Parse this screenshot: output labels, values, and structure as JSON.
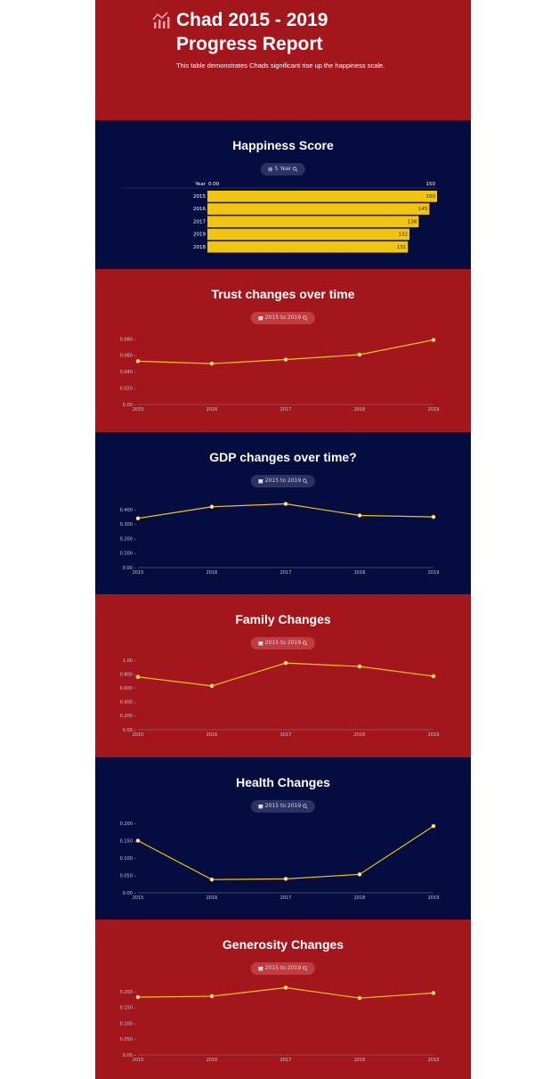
{
  "header": {
    "title_line1": "Chad 2015 - 2019",
    "title_line2": "Progress Report",
    "subtitle": "This table demonstrates Chads significant rise up the happiness scale."
  },
  "colors": {
    "red": "#a3161c",
    "navy": "#050c40",
    "accent": "#f1c40f"
  },
  "sections": [
    {
      "title": "Happiness Score",
      "pill": "5 Year",
      "pill_icon": "hash-icon",
      "theme": "navy"
    },
    {
      "title": "Trust changes over time",
      "pill": "2015 to 2019",
      "pill_icon": "calendar-icon",
      "theme": "red"
    },
    {
      "title": "GDP changes over time?",
      "pill": "2015 to 2019",
      "pill_icon": "calendar-icon",
      "theme": "navy"
    },
    {
      "title": "Family Changes",
      "pill": "2015 to 2019",
      "pill_icon": "calendar-icon",
      "theme": "red"
    },
    {
      "title": "Health Changes",
      "pill": "2015 to 2019",
      "pill_icon": "calendar-icon",
      "theme": "navy"
    },
    {
      "title": "Generosity Changes",
      "pill": "2015 to 2019",
      "pill_icon": "calendar-icon",
      "theme": "red"
    }
  ],
  "chart_data": [
    {
      "type": "bar",
      "title": "Happiness Score",
      "header_label": "Year",
      "axis_min_label": "0.00",
      "axis_max_label": "150",
      "xlim": [
        0,
        150
      ],
      "categories": [
        "2015",
        "2016",
        "2017",
        "2019",
        "2018"
      ],
      "values": [
        150,
        145,
        138,
        132,
        131
      ]
    },
    {
      "type": "line",
      "title": "Trust changes over time",
      "x": [
        "2015",
        "2016",
        "2017",
        "2018",
        "2019"
      ],
      "values": [
        0.053,
        0.05,
        0.055,
        0.061,
        0.079
      ],
      "yticks": [
        "0.00",
        "0.020",
        "0.040",
        "0.060",
        "0.080"
      ],
      "ylim": [
        0,
        0.085
      ]
    },
    {
      "type": "line",
      "title": "GDP changes over time?",
      "x": [
        "2015",
        "2016",
        "2017",
        "2018",
        "2019"
      ],
      "values": [
        0.34,
        0.42,
        0.44,
        0.36,
        0.35
      ],
      "yticks": [
        "0.00",
        "0.100",
        "0.200",
        "0.300",
        "0.400"
      ],
      "ylim": [
        0,
        0.48
      ]
    },
    {
      "type": "line",
      "title": "Family Changes",
      "x": [
        "2015",
        "2016",
        "2017",
        "2018",
        "2019"
      ],
      "values": [
        0.76,
        0.63,
        0.96,
        0.91,
        0.77
      ],
      "yticks": [
        "0.00",
        "0.200",
        "0.400",
        "0.600",
        "0.800",
        "1.00"
      ],
      "ylim": [
        0,
        1.0
      ]
    },
    {
      "type": "line",
      "title": "Health Changes",
      "x": [
        "2015",
        "2016",
        "2017",
        "2018",
        "2019"
      ],
      "values": [
        0.15,
        0.038,
        0.04,
        0.053,
        0.192
      ],
      "yticks": [
        "0.00",
        "0.050",
        "0.100",
        "0.150",
        "0.200"
      ],
      "ylim": [
        0,
        0.2
      ]
    },
    {
      "type": "line",
      "title": "Generosity Changes",
      "x": [
        "2015",
        "2016",
        "2017",
        "2018",
        "2019"
      ],
      "values": [
        0.183,
        0.186,
        0.213,
        0.18,
        0.196
      ],
      "yticks": [
        "0.00",
        "0.050",
        "0.100",
        "0.150",
        "0.200"
      ],
      "ylim": [
        0,
        0.22
      ]
    }
  ]
}
